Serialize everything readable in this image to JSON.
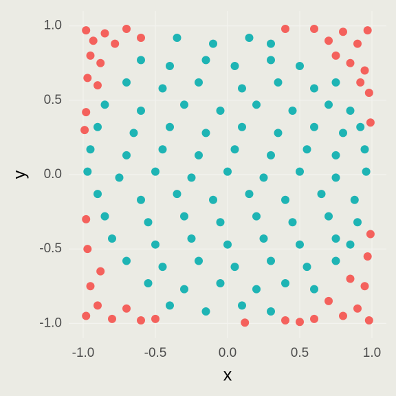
{
  "chart_data": {
    "type": "scatter",
    "xlabel": "x",
    "ylabel": "y",
    "xlim": [
      -1.1,
      1.1
    ],
    "ylim": [
      -1.1,
      1.1
    ],
    "xticks": [
      {
        "value": -1,
        "label": "-1.0"
      },
      -0.5,
      {
        "value": 0,
        "label": "0.0"
      },
      0.5,
      {
        "value": 1,
        "label": "1.0"
      }
    ],
    "yticks": [
      {
        "value": -1,
        "label": "-1.0"
      },
      -0.5,
      {
        "value": 0,
        "label": "0.0"
      },
      0.5,
      {
        "value": 1,
        "label": "1.0"
      }
    ],
    "grid": true,
    "series": [
      {
        "color": "#f4615c",
        "x": [
          -0.98,
          -0.93,
          -0.85,
          -0.78,
          -0.7,
          -0.95,
          -0.88,
          -0.6,
          -0.97,
          -0.9,
          -0.98,
          -0.99,
          0.6,
          0.7,
          0.8,
          0.9,
          0.97,
          0.85,
          0.95,
          0.75,
          0.98,
          0.92,
          0.4,
          0.99,
          -0.98,
          -0.9,
          -0.8,
          -0.7,
          -0.95,
          -0.88,
          -0.6,
          -0.97,
          -0.5,
          -0.98,
          0.98,
          0.9,
          0.8,
          0.7,
          0.95,
          0.85,
          0.6,
          0.97,
          0.5,
          0.4,
          0.99,
          0.12
        ],
        "values": [
          0.97,
          0.9,
          0.95,
          0.88,
          0.98,
          0.8,
          0.75,
          0.92,
          0.65,
          0.6,
          0.42,
          0.3,
          0.98,
          0.9,
          0.96,
          0.88,
          0.97,
          0.75,
          0.7,
          0.8,
          0.55,
          0.62,
          0.98,
          0.35,
          -0.95,
          -0.88,
          -0.97,
          -0.9,
          -0.75,
          -0.65,
          -0.98,
          -0.5,
          -0.97,
          -0.3,
          -0.98,
          -0.9,
          -0.95,
          -0.85,
          -0.75,
          -0.7,
          -0.97,
          -0.55,
          -0.99,
          -0.98,
          -0.4,
          -0.995
        ]
      },
      {
        "color": "#1eb4b4",
        "x": [
          -0.35,
          -0.1,
          0.15,
          0.3,
          -0.6,
          -0.4,
          -0.15,
          0.05,
          0.3,
          0.5,
          -0.7,
          -0.45,
          -0.2,
          0.1,
          0.35,
          0.6,
          0.75,
          -0.85,
          -0.6,
          -0.3,
          -0.05,
          0.2,
          0.45,
          0.7,
          0.85,
          -0.9,
          -0.65,
          -0.4,
          -0.15,
          0.1,
          0.35,
          0.6,
          0.8,
          0.92,
          -0.95,
          -0.7,
          -0.45,
          -0.2,
          0.05,
          0.3,
          0.55,
          0.75,
          0.95,
          -0.97,
          -0.75,
          -0.5,
          -0.25,
          0,
          0.25,
          0.5,
          0.75,
          0.96,
          -0.9,
          -0.6,
          -0.35,
          -0.1,
          0.15,
          0.4,
          0.65,
          0.88,
          -0.85,
          -0.55,
          -0.3,
          -0.05,
          0.2,
          0.45,
          0.7,
          0.9,
          -0.8,
          -0.5,
          -0.25,
          0,
          0.25,
          0.5,
          0.75,
          0.85,
          -0.7,
          -0.45,
          -0.2,
          0.05,
          0.3,
          0.55,
          0.75,
          -0.55,
          -0.3,
          -0.05,
          0.2,
          0.4,
          0.6,
          -0.4,
          -0.15,
          0.1,
          0.3
        ],
        "values": [
          0.92,
          0.88,
          0.92,
          0.88,
          0.77,
          0.73,
          0.77,
          0.73,
          0.77,
          0.73,
          0.62,
          0.58,
          0.62,
          0.58,
          0.62,
          0.58,
          0.62,
          0.47,
          0.43,
          0.47,
          0.43,
          0.47,
          0.43,
          0.47,
          0.43,
          0.32,
          0.28,
          0.32,
          0.28,
          0.32,
          0.28,
          0.32,
          0.28,
          0.32,
          0.17,
          0.13,
          0.17,
          0.13,
          0.17,
          0.13,
          0.17,
          0.13,
          0.17,
          0.02,
          -0.02,
          0.02,
          -0.02,
          0.02,
          -0.02,
          0.02,
          -0.02,
          0.02,
          -0.13,
          -0.17,
          -0.13,
          -0.17,
          -0.13,
          -0.17,
          -0.13,
          -0.17,
          -0.28,
          -0.32,
          -0.28,
          -0.32,
          -0.28,
          -0.32,
          -0.28,
          -0.32,
          -0.43,
          -0.47,
          -0.43,
          -0.47,
          -0.43,
          -0.47,
          -0.43,
          -0.47,
          -0.58,
          -0.62,
          -0.58,
          -0.62,
          -0.58,
          -0.62,
          -0.58,
          -0.73,
          -0.77,
          -0.73,
          -0.77,
          -0.73,
          -0.77,
          -0.88,
          -0.92,
          -0.88,
          -0.92
        ]
      }
    ]
  }
}
